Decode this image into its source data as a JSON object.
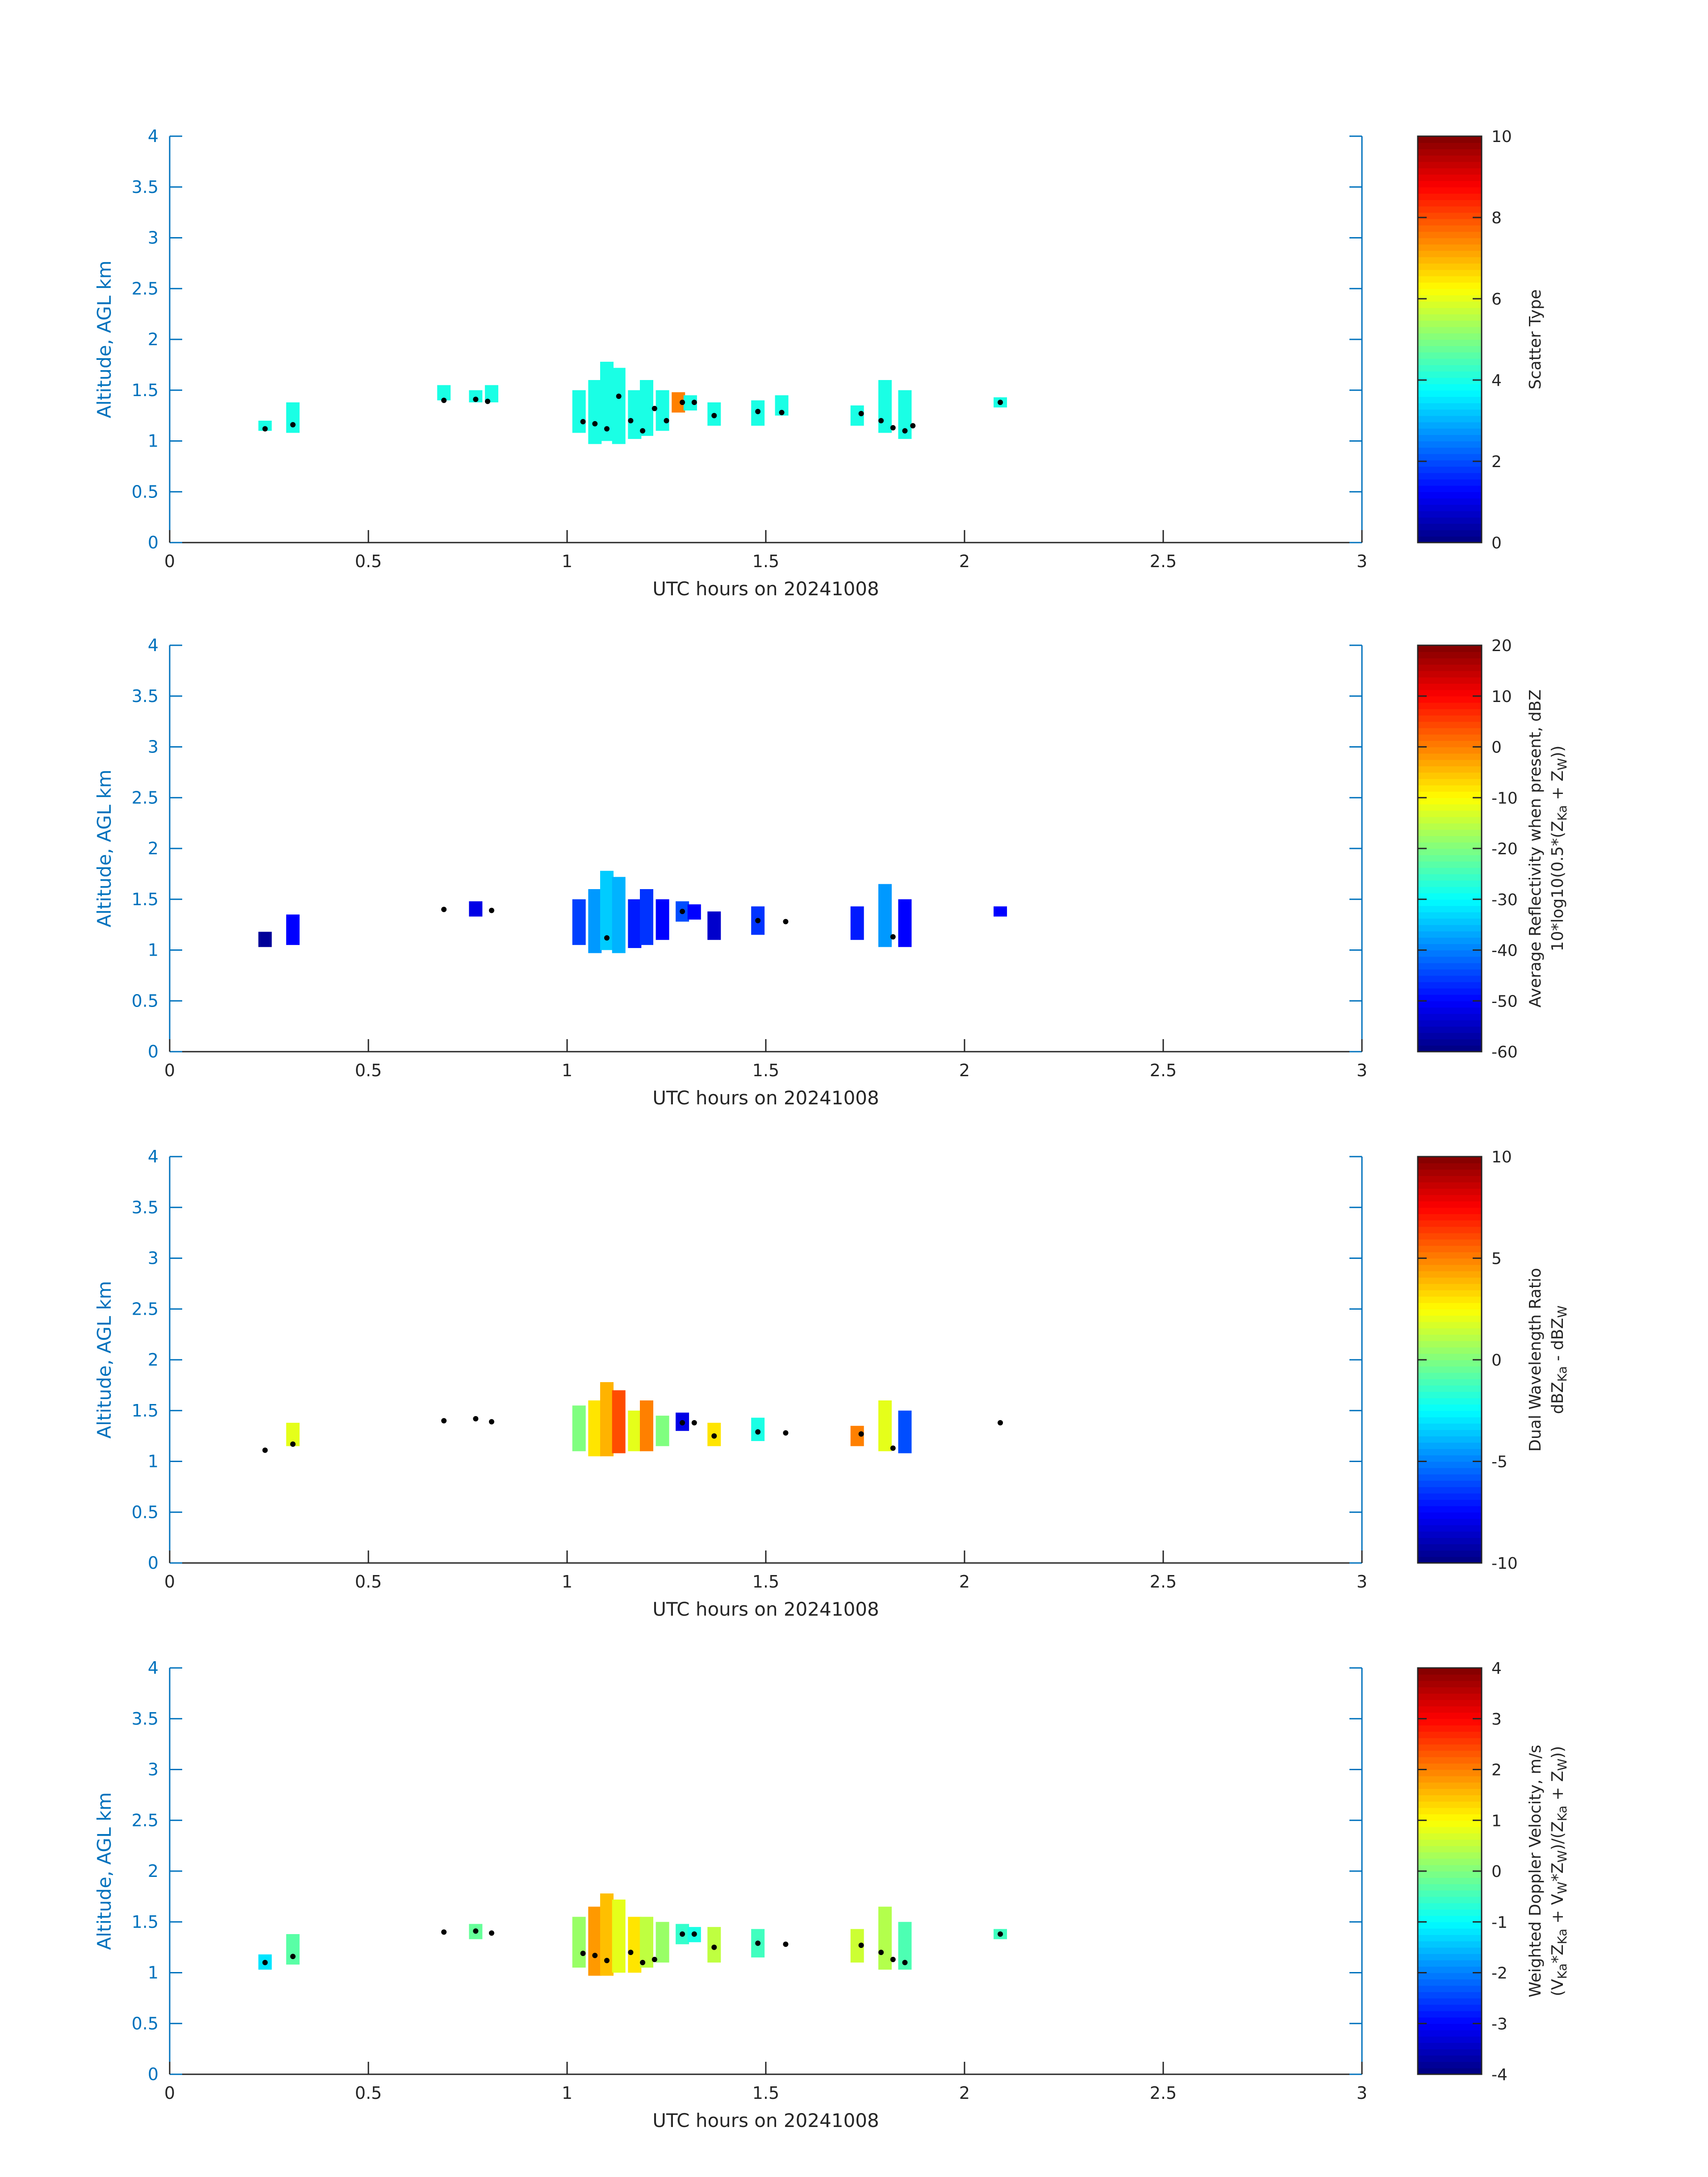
{
  "chart_data": [
    {
      "type": "heatmap",
      "x_range": [
        0,
        3
      ],
      "y_range": [
        0,
        4
      ],
      "x_ticks": [
        "0",
        "0.5",
        "1",
        "1.5",
        "2",
        "2.5",
        "3"
      ],
      "y_ticks": [
        "0",
        "0.5",
        "1",
        "1.5",
        "2",
        "2.5",
        "3",
        "3.5",
        "4"
      ],
      "xlabel": "UTC hours on 20241008",
      "ylabel": "Altitude, AGL km",
      "colorbar": {
        "label_lines": [
          "Scatter Type"
        ],
        "range": [
          0,
          10
        ],
        "ticks": [
          "0",
          "2",
          "4",
          "6",
          "8",
          "10"
        ]
      },
      "cells": [
        {
          "x": 0.24,
          "y0": 1.1,
          "y1": 1.2,
          "v": 4
        },
        {
          "x": 0.31,
          "y0": 1.08,
          "y1": 1.38,
          "v": 4
        },
        {
          "x": 0.69,
          "y0": 1.4,
          "y1": 1.55,
          "v": 4
        },
        {
          "x": 0.77,
          "y0": 1.38,
          "y1": 1.5,
          "v": 4
        },
        {
          "x": 0.81,
          "y0": 1.38,
          "y1": 1.55,
          "v": 4
        },
        {
          "x": 1.03,
          "y0": 1.08,
          "y1": 1.5,
          "v": 4
        },
        {
          "x": 1.07,
          "y0": 0.97,
          "y1": 1.6,
          "v": 4
        },
        {
          "x": 1.1,
          "y0": 1.0,
          "y1": 1.78,
          "v": 4
        },
        {
          "x": 1.13,
          "y0": 0.97,
          "y1": 1.72,
          "v": 4
        },
        {
          "x": 1.17,
          "y0": 1.02,
          "y1": 1.5,
          "v": 4
        },
        {
          "x": 1.2,
          "y0": 1.05,
          "y1": 1.6,
          "v": 4
        },
        {
          "x": 1.24,
          "y0": 1.1,
          "y1": 1.5,
          "v": 4
        },
        {
          "x": 1.28,
          "y0": 1.28,
          "y1": 1.48,
          "v": 7.5
        },
        {
          "x": 1.31,
          "y0": 1.3,
          "y1": 1.45,
          "v": 4
        },
        {
          "x": 1.37,
          "y0": 1.15,
          "y1": 1.38,
          "v": 4
        },
        {
          "x": 1.48,
          "y0": 1.15,
          "y1": 1.4,
          "v": 4
        },
        {
          "x": 1.54,
          "y0": 1.25,
          "y1": 1.45,
          "v": 4
        },
        {
          "x": 1.73,
          "y0": 1.15,
          "y1": 1.35,
          "v": 4
        },
        {
          "x": 1.8,
          "y0": 1.08,
          "y1": 1.6,
          "v": 4
        },
        {
          "x": 1.85,
          "y0": 1.02,
          "y1": 1.5,
          "v": 4
        },
        {
          "x": 2.09,
          "y0": 1.33,
          "y1": 1.43,
          "v": 4
        }
      ],
      "dots": [
        {
          "x": 0.24,
          "y": 1.12
        },
        {
          "x": 0.31,
          "y": 1.16
        },
        {
          "x": 0.69,
          "y": 1.4
        },
        {
          "x": 0.77,
          "y": 1.41
        },
        {
          "x": 0.8,
          "y": 1.39
        },
        {
          "x": 1.04,
          "y": 1.19
        },
        {
          "x": 1.07,
          "y": 1.17
        },
        {
          "x": 1.1,
          "y": 1.12
        },
        {
          "x": 1.13,
          "y": 1.44
        },
        {
          "x": 1.16,
          "y": 1.2
        },
        {
          "x": 1.19,
          "y": 1.1
        },
        {
          "x": 1.22,
          "y": 1.32
        },
        {
          "x": 1.25,
          "y": 1.2
        },
        {
          "x": 1.29,
          "y": 1.38
        },
        {
          "x": 1.32,
          "y": 1.38
        },
        {
          "x": 1.37,
          "y": 1.25
        },
        {
          "x": 1.48,
          "y": 1.29
        },
        {
          "x": 1.54,
          "y": 1.28
        },
        {
          "x": 1.74,
          "y": 1.27
        },
        {
          "x": 1.79,
          "y": 1.2
        },
        {
          "x": 1.82,
          "y": 1.13
        },
        {
          "x": 1.85,
          "y": 1.1
        },
        {
          "x": 1.87,
          "y": 1.15
        },
        {
          "x": 2.09,
          "y": 1.38
        }
      ]
    },
    {
      "type": "heatmap",
      "x_range": [
        0,
        3
      ],
      "y_range": [
        0,
        4
      ],
      "x_ticks": [
        "0",
        "0.5",
        "1",
        "1.5",
        "2",
        "2.5",
        "3"
      ],
      "y_ticks": [
        "0",
        "0.5",
        "1",
        "1.5",
        "2",
        "2.5",
        "3",
        "3.5",
        "4"
      ],
      "xlabel": "UTC hours on 20241008",
      "ylabel": "Altitude, AGL km",
      "colorbar": {
        "label_lines": [
          "Average Reflectivity when present, dBZ",
          "10*log10(0.5*(Z",
          "Ka",
          " + Z",
          "W",
          "))"
        ],
        "range": [
          -60,
          20
        ],
        "ticks": [
          "-60",
          "-50",
          "-40",
          "-30",
          "-20",
          "-10",
          "0",
          "10",
          "20"
        ]
      },
      "cells": [
        {
          "x": 0.24,
          "y0": 1.03,
          "y1": 1.18,
          "v": -58
        },
        {
          "x": 0.31,
          "y0": 1.05,
          "y1": 1.35,
          "v": -50
        },
        {
          "x": 0.77,
          "y0": 1.33,
          "y1": 1.48,
          "v": -52
        },
        {
          "x": 1.03,
          "y0": 1.05,
          "y1": 1.5,
          "v": -45
        },
        {
          "x": 1.07,
          "y0": 0.97,
          "y1": 1.6,
          "v": -38
        },
        {
          "x": 1.1,
          "y0": 1.0,
          "y1": 1.78,
          "v": -34
        },
        {
          "x": 1.13,
          "y0": 0.97,
          "y1": 1.72,
          "v": -36
        },
        {
          "x": 1.17,
          "y0": 1.02,
          "y1": 1.5,
          "v": -48
        },
        {
          "x": 1.2,
          "y0": 1.05,
          "y1": 1.6,
          "v": -46
        },
        {
          "x": 1.24,
          "y0": 1.1,
          "y1": 1.5,
          "v": -50
        },
        {
          "x": 1.29,
          "y0": 1.28,
          "y1": 1.48,
          "v": -44
        },
        {
          "x": 1.32,
          "y0": 1.3,
          "y1": 1.45,
          "v": -50
        },
        {
          "x": 1.37,
          "y0": 1.1,
          "y1": 1.38,
          "v": -54
        },
        {
          "x": 1.48,
          "y0": 1.15,
          "y1": 1.43,
          "v": -46
        },
        {
          "x": 1.73,
          "y0": 1.1,
          "y1": 1.43,
          "v": -48
        },
        {
          "x": 1.8,
          "y0": 1.03,
          "y1": 1.65,
          "v": -38
        },
        {
          "x": 1.85,
          "y0": 1.03,
          "y1": 1.5,
          "v": -50
        },
        {
          "x": 2.09,
          "y0": 1.33,
          "y1": 1.43,
          "v": -50
        }
      ],
      "dots": [
        {
          "x": 0.69,
          "y": 1.4
        },
        {
          "x": 0.81,
          "y": 1.39
        },
        {
          "x": 1.55,
          "y": 1.28
        },
        {
          "x": 1.29,
          "y": 1.38
        },
        {
          "x": 1.1,
          "y": 1.12
        },
        {
          "x": 1.82,
          "y": 1.13
        },
        {
          "x": 1.48,
          "y": 1.29
        }
      ]
    },
    {
      "type": "heatmap",
      "x_range": [
        0,
        3
      ],
      "y_range": [
        0,
        4
      ],
      "x_ticks": [
        "0",
        "0.5",
        "1",
        "1.5",
        "2",
        "2.5",
        "3"
      ],
      "y_ticks": [
        "0",
        "0.5",
        "1",
        "1.5",
        "2",
        "2.5",
        "3",
        "3.5",
        "4"
      ],
      "xlabel": "UTC hours on 20241008",
      "ylabel": "Altitude, AGL km",
      "colorbar": {
        "label_lines": [
          "Dual Wavelength Ratio",
          "dBZ",
          "Ka",
          " - dBZ",
          "W"
        ],
        "range": [
          -10,
          10
        ],
        "ticks": [
          "-10",
          "-5",
          "0",
          "5",
          "10"
        ]
      },
      "cells": [
        {
          "x": 0.31,
          "y0": 1.15,
          "y1": 1.38,
          "v": 2
        },
        {
          "x": 1.03,
          "y0": 1.1,
          "y1": 1.55,
          "v": 0
        },
        {
          "x": 1.07,
          "y0": 1.05,
          "y1": 1.6,
          "v": 3
        },
        {
          "x": 1.1,
          "y0": 1.05,
          "y1": 1.78,
          "v": 4
        },
        {
          "x": 1.13,
          "y0": 1.08,
          "y1": 1.7,
          "v": 6
        },
        {
          "x": 1.17,
          "y0": 1.1,
          "y1": 1.5,
          "v": 2
        },
        {
          "x": 1.2,
          "y0": 1.1,
          "y1": 1.6,
          "v": 5
        },
        {
          "x": 1.24,
          "y0": 1.15,
          "y1": 1.45,
          "v": 0
        },
        {
          "x": 1.29,
          "y0": 1.3,
          "y1": 1.48,
          "v": -8
        },
        {
          "x": 1.37,
          "y0": 1.15,
          "y1": 1.38,
          "v": 3
        },
        {
          "x": 1.48,
          "y0": 1.2,
          "y1": 1.43,
          "v": -2
        },
        {
          "x": 1.73,
          "y0": 1.15,
          "y1": 1.35,
          "v": 5
        },
        {
          "x": 1.8,
          "y0": 1.1,
          "y1": 1.6,
          "v": 2
        },
        {
          "x": 1.85,
          "y0": 1.08,
          "y1": 1.5,
          "v": -6
        }
      ],
      "dots": [
        {
          "x": 0.24,
          "y": 1.11
        },
        {
          "x": 0.31,
          "y": 1.17
        },
        {
          "x": 0.69,
          "y": 1.4
        },
        {
          "x": 0.77,
          "y": 1.42
        },
        {
          "x": 0.81,
          "y": 1.39
        },
        {
          "x": 1.29,
          "y": 1.38
        },
        {
          "x": 1.32,
          "y": 1.38
        },
        {
          "x": 1.37,
          "y": 1.25
        },
        {
          "x": 1.48,
          "y": 1.29
        },
        {
          "x": 1.55,
          "y": 1.28
        },
        {
          "x": 1.74,
          "y": 1.27
        },
        {
          "x": 1.82,
          "y": 1.13
        },
        {
          "x": 2.09,
          "y": 1.38
        }
      ]
    },
    {
      "type": "heatmap",
      "x_range": [
        0,
        3
      ],
      "y_range": [
        0,
        4
      ],
      "x_ticks": [
        "0",
        "0.5",
        "1",
        "1.5",
        "2",
        "2.5",
        "3"
      ],
      "y_ticks": [
        "0",
        "0.5",
        "1",
        "1.5",
        "2",
        "2.5",
        "3",
        "3.5",
        "4"
      ],
      "xlabel": "UTC hours on 20241008",
      "ylabel": "Altitude, AGL km",
      "colorbar": {
        "label_lines": [
          "Weighted Doppler Velocity, m/s",
          "(V",
          "Ka",
          "*Z",
          "Ka",
          " + V",
          "W",
          "*Z",
          "W",
          ")/(Z",
          "Ka",
          " + Z",
          "W",
          "))"
        ],
        "range": [
          -4,
          4
        ],
        "ticks": [
          "-4",
          "-3",
          "-2",
          "-1",
          "0",
          "1",
          "2",
          "3",
          "4"
        ]
      },
      "cells": [
        {
          "x": 0.24,
          "y0": 1.03,
          "y1": 1.18,
          "v": -1.2
        },
        {
          "x": 0.31,
          "y0": 1.08,
          "y1": 1.38,
          "v": -0.3
        },
        {
          "x": 0.77,
          "y0": 1.33,
          "y1": 1.48,
          "v": -0.2
        },
        {
          "x": 1.03,
          "y0": 1.05,
          "y1": 1.55,
          "v": 0.2
        },
        {
          "x": 1.07,
          "y0": 0.97,
          "y1": 1.65,
          "v": 1.8
        },
        {
          "x": 1.1,
          "y0": 0.97,
          "y1": 1.78,
          "v": 1.5
        },
        {
          "x": 1.13,
          "y0": 1.0,
          "y1": 1.72,
          "v": 0.8
        },
        {
          "x": 1.17,
          "y0": 1.0,
          "y1": 1.55,
          "v": 1.2
        },
        {
          "x": 1.2,
          "y0": 1.05,
          "y1": 1.55,
          "v": 0.5
        },
        {
          "x": 1.24,
          "y0": 1.1,
          "y1": 1.5,
          "v": 0.2
        },
        {
          "x": 1.29,
          "y0": 1.28,
          "y1": 1.48,
          "v": -0.6
        },
        {
          "x": 1.32,
          "y0": 1.3,
          "y1": 1.45,
          "v": -0.8
        },
        {
          "x": 1.37,
          "y0": 1.1,
          "y1": 1.45,
          "v": 0.5
        },
        {
          "x": 1.48,
          "y0": 1.15,
          "y1": 1.43,
          "v": -0.5
        },
        {
          "x": 1.73,
          "y0": 1.1,
          "y1": 1.43,
          "v": 0.6
        },
        {
          "x": 1.8,
          "y0": 1.03,
          "y1": 1.65,
          "v": 0.4
        },
        {
          "x": 1.85,
          "y0": 1.03,
          "y1": 1.5,
          "v": -0.4
        },
        {
          "x": 2.09,
          "y0": 1.33,
          "y1": 1.43,
          "v": -0.5
        }
      ],
      "dots": [
        {
          "x": 0.24,
          "y": 1.1
        },
        {
          "x": 0.31,
          "y": 1.16
        },
        {
          "x": 0.69,
          "y": 1.4
        },
        {
          "x": 0.77,
          "y": 1.41
        },
        {
          "x": 0.81,
          "y": 1.39
        },
        {
          "x": 1.04,
          "y": 1.19
        },
        {
          "x": 1.07,
          "y": 1.17
        },
        {
          "x": 1.1,
          "y": 1.12
        },
        {
          "x": 1.16,
          "y": 1.2
        },
        {
          "x": 1.19,
          "y": 1.1
        },
        {
          "x": 1.22,
          "y": 1.13
        },
        {
          "x": 1.29,
          "y": 1.38
        },
        {
          "x": 1.32,
          "y": 1.38
        },
        {
          "x": 1.37,
          "y": 1.25
        },
        {
          "x": 1.48,
          "y": 1.29
        },
        {
          "x": 1.55,
          "y": 1.28
        },
        {
          "x": 1.74,
          "y": 1.27
        },
        {
          "x": 1.79,
          "y": 1.2
        },
        {
          "x": 1.82,
          "y": 1.13
        },
        {
          "x": 1.85,
          "y": 1.1
        },
        {
          "x": 2.09,
          "y": 1.38
        }
      ]
    }
  ]
}
